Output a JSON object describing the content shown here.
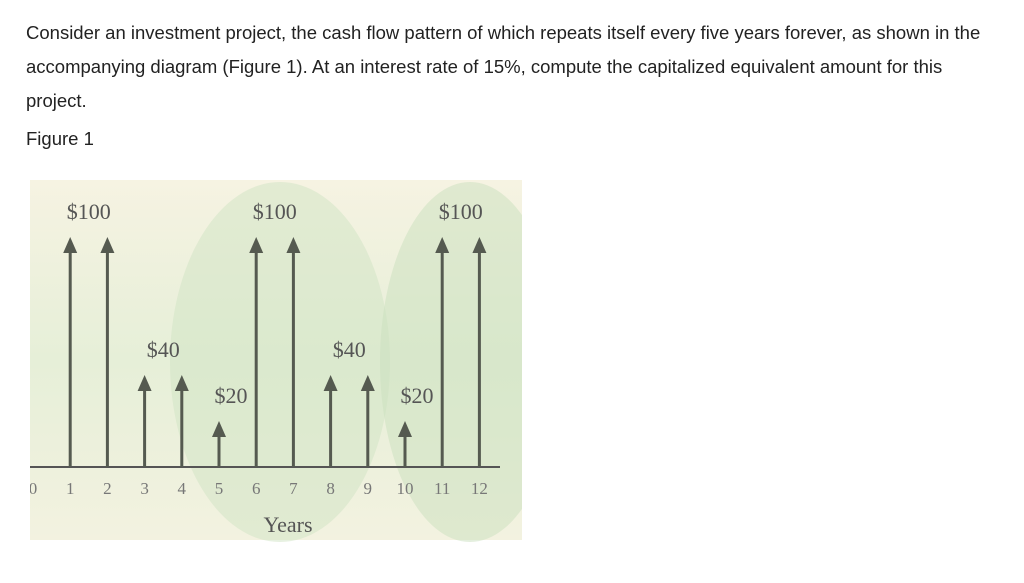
{
  "question": "Consider an investment project, the cash flow pattern of which repeats itself every five years forever, as shown in the accompanying diagram (Figure 1). At an interest rate of 15%, compute the capitalized equivalent amount for this project.",
  "figure_label": "Figure 1",
  "diagram": {
    "x_axis_label": "Years",
    "years": [
      0,
      1,
      2,
      3,
      4,
      5,
      6,
      7,
      8,
      9,
      10,
      11,
      12
    ],
    "cash_flows": [
      {
        "year": 1,
        "amount": 100
      },
      {
        "year": 2,
        "amount": 100
      },
      {
        "year": 3,
        "amount": 40
      },
      {
        "year": 4,
        "amount": 40
      },
      {
        "year": 5,
        "amount": 20
      },
      {
        "year": 6,
        "amount": 100
      },
      {
        "year": 7,
        "amount": 100
      },
      {
        "year": 8,
        "amount": 40
      },
      {
        "year": 9,
        "amount": 40
      },
      {
        "year": 10,
        "amount": 20
      },
      {
        "year": 11,
        "amount": 100
      },
      {
        "year": 12,
        "amount": 100
      }
    ],
    "labels": [
      {
        "text": "$100",
        "years": [
          1,
          2
        ]
      },
      {
        "text": "$40",
        "years": [
          3,
          4
        ]
      },
      {
        "text": "$20",
        "years": [
          5
        ]
      },
      {
        "text": "$100",
        "years": [
          6,
          7
        ]
      },
      {
        "text": "$40",
        "years": [
          8,
          9
        ]
      },
      {
        "text": "$20",
        "years": [
          10
        ]
      },
      {
        "text": "$100",
        "years": [
          11,
          12
        ]
      }
    ],
    "arrow_color": "#555a50"
  }
}
